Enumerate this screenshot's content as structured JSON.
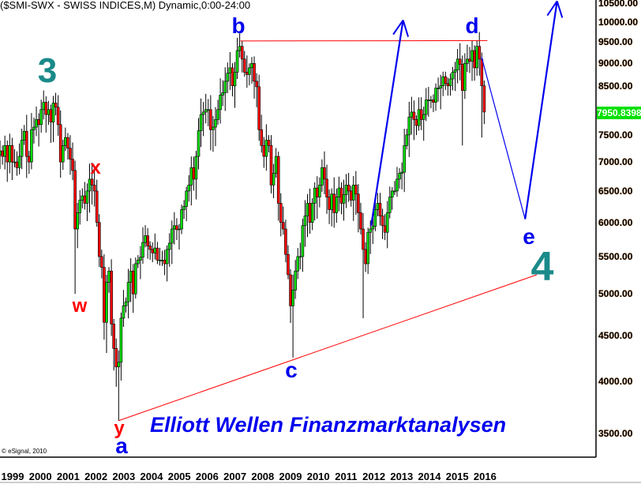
{
  "chart_data": {
    "type": "candlestick",
    "title": "($SMI-SWX - SWISS INDICES,M) Dynamic,0:00-24:00",
    "interval": "monthly",
    "start_month": "1999-02",
    "closes": [
      7200,
      7100,
      7300,
      7000,
      7300,
      7000,
      7000,
      6900,
      7100,
      7400,
      7570,
      7100,
      7000,
      7600,
      7650,
      7800,
      7700,
      8000,
      8150,
      7900,
      8000,
      7750,
      8135,
      8050,
      7700,
      7000,
      7300,
      7450,
      7250,
      7050,
      6850,
      5900,
      6150,
      6350,
      6420,
      6300,
      6500,
      6700,
      6600,
      6500,
      6000,
      5500,
      5350,
      4650,
      5150,
      5300,
      4630,
      4350,
      4150,
      4200,
      4700,
      4850,
      4900,
      5150,
      5300,
      5000,
      5400,
      5450,
      5490,
      5700,
      5800,
      5650,
      5600,
      5550,
      5620,
      5450,
      5450,
      5450,
      5400,
      5600,
      5690,
      5900,
      5950,
      5890,
      5900,
      6200,
      6250,
      6500,
      6600,
      6900,
      6700,
      7100,
      7580,
      7900,
      7950,
      8000,
      8000,
      7600,
      7650,
      7800,
      8000,
      8300,
      8350,
      8600,
      8780,
      8900,
      8500,
      8800,
      9300,
      9400,
      9100,
      8800,
      8750,
      8900,
      9000,
      8600,
      8480,
      7600,
      7300,
      7100,
      7400,
      7300,
      6600,
      6800,
      7100,
      6300,
      6000,
      5900,
      5530,
      5250,
      4850,
      5050,
      5300,
      5500,
      5500,
      5950,
      6100,
      6300,
      6000,
      6300,
      6550,
      6400,
      6600,
      6900,
      6700,
      6400,
      6200,
      6450,
      6150,
      6400,
      6550,
      6300,
      6440,
      6600,
      6500,
      6350,
      6600,
      6450,
      6150,
      5900,
      5600,
      5400,
      5850,
      5900,
      5940,
      6200,
      6300,
      6100,
      5950,
      5850,
      6150,
      6400,
      6500,
      6500,
      6700,
      6800,
      6820,
      7300,
      7500,
      7850,
      7950,
      7800,
      7680,
      8000,
      7800,
      7900,
      8200,
      8200,
      8200,
      8150,
      8450,
      8450,
      8500,
      8700,
      8550,
      8500,
      8650,
      8800,
      8850,
      9100,
      8980,
      8400,
      9000,
      9100,
      9050,
      9300,
      8900,
      9400,
      9100,
      8500,
      7951
    ],
    "notable_lows": {
      "2001-09": 5000,
      "2002-10": 4300,
      "2003-03": 3618,
      "2009-03": 4250,
      "2011-08": 4700,
      "2015-01": 7300,
      "2015-09": 7450
    },
    "notable_highs": {
      "2000-08": 8400,
      "2007-06": 9530,
      "2015-07": 9540
    },
    "last_price": "7950.8398",
    "y_scale": "log",
    "ylim": [
      3300,
      10600
    ],
    "y_ticks": [
      "10500.00",
      "10000.00",
      "9500.00",
      "9000.00",
      "8500.00",
      "7500.00",
      "7000.00",
      "6500.00",
      "6000.00",
      "5500.00",
      "5000.00",
      "4500.00",
      "4000.00",
      "3500.00"
    ],
    "x_ticks": [
      "1999",
      "2000",
      "2001",
      "2002",
      "2003",
      "2004",
      "2005",
      "2006",
      "2007",
      "2008",
      "2009",
      "2010",
      "2011",
      "2012",
      "2013",
      "2014",
      "2015",
      "2016"
    ],
    "grid": false,
    "colors": {
      "up": "#00dd00",
      "down": "#ff0000",
      "wave_major": "#1a8a8a",
      "wave_red": "#ff0000",
      "wave_blue": "#0000ee",
      "trendline": "#ff0000",
      "projection": "#0000ee"
    },
    "trendlines": [
      {
        "kind": "horizontal-resistance",
        "from": [
          2007.4,
          9530
        ],
        "to": [
          2015.9,
          9540
        ]
      },
      {
        "kind": "support",
        "from": [
          2003.2,
          3618
        ],
        "to": [
          2017.6,
          5250
        ]
      }
    ],
    "projections": [
      {
        "points": [
          [
            2011.9,
            5950
          ],
          [
            2013.0,
            10050
          ]
        ],
        "arrow": true
      },
      {
        "points": [
          [
            2015.7,
            9150
          ],
          [
            2017.2,
            6050
          ],
          [
            2018.3,
            10550
          ]
        ],
        "arrow": true
      }
    ],
    "wave_labels": {
      "three": "3",
      "w": "w",
      "x": "x",
      "y": "y",
      "a": "a",
      "b": "b",
      "c": "c",
      "d": "d",
      "e": "e",
      "four": "4"
    }
  },
  "branding": "Elliott Wellen Finanzmarktanalysen",
  "copyright": "© eSignal, 2010"
}
